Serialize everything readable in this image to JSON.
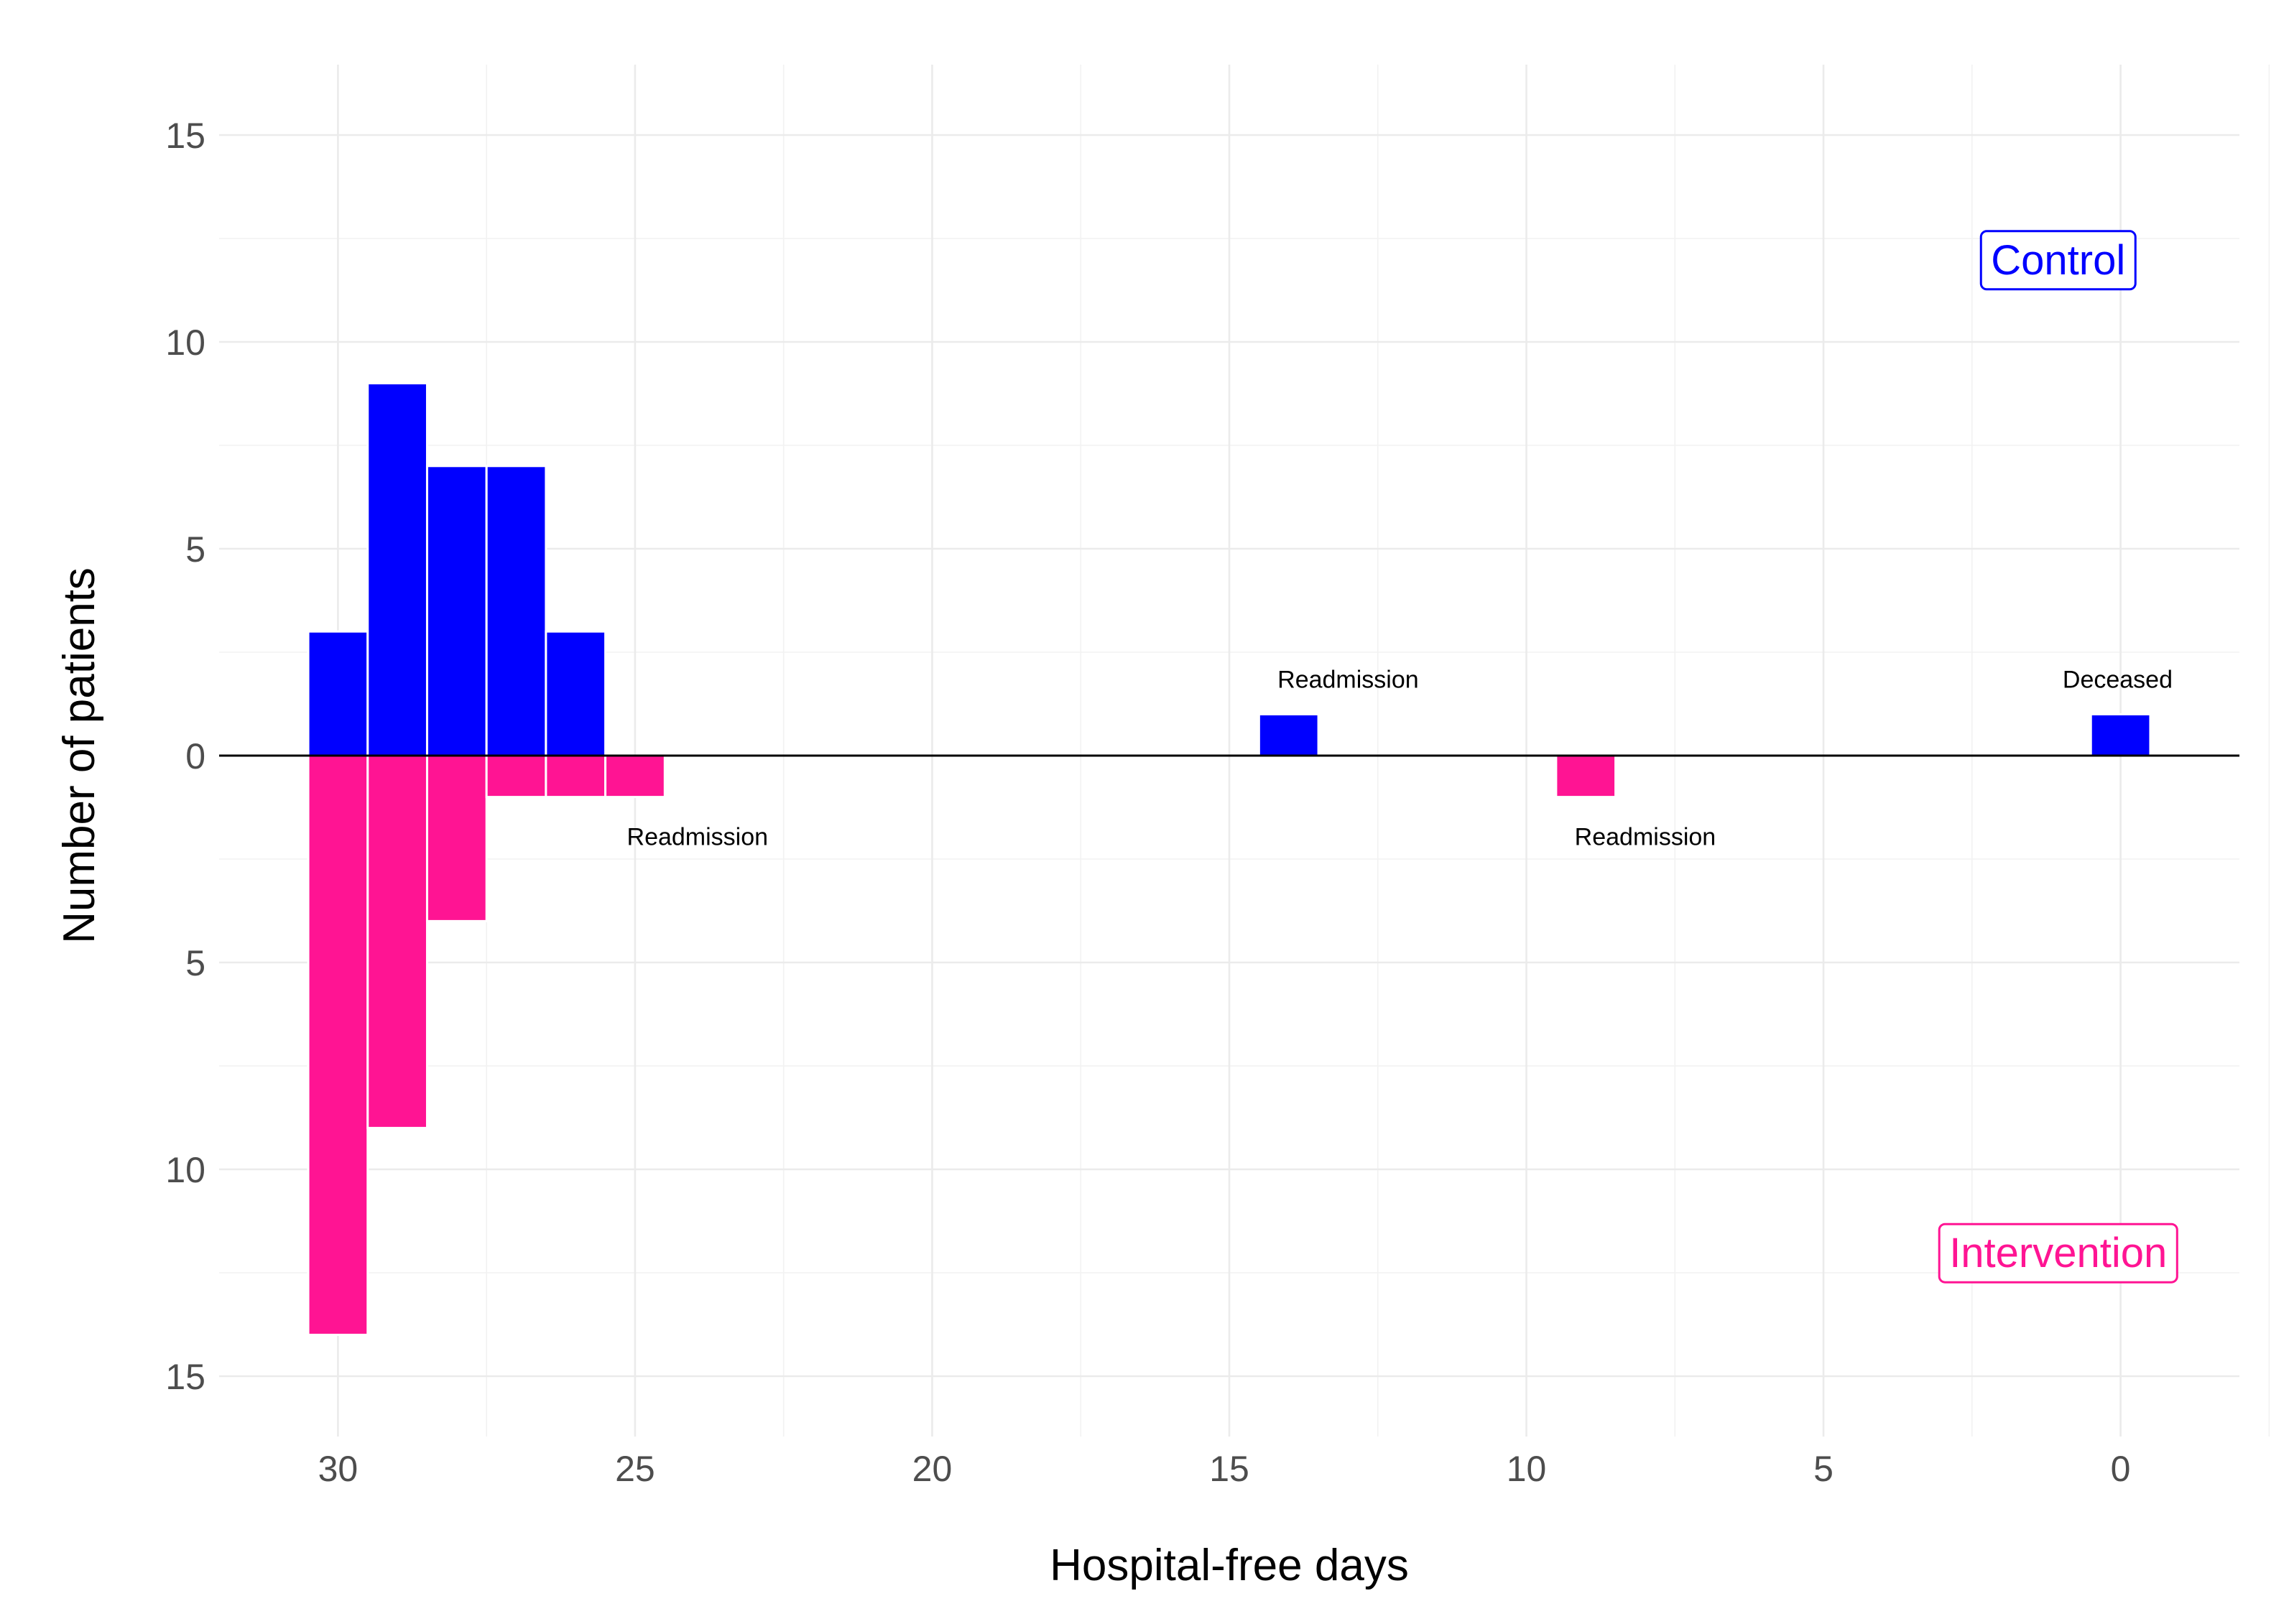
{
  "chart_data": {
    "type": "bar",
    "title": "",
    "xlabel": "Hospital-free days",
    "ylabel": "Number of patients",
    "x_reversed": true,
    "xlim": [
      -2,
      32
    ],
    "ylim": [
      -15,
      15
    ],
    "x_ticks": [
      30,
      25,
      20,
      15,
      10,
      5,
      0
    ],
    "y_ticks": [
      15,
      10,
      5,
      0,
      -5,
      -10,
      -15
    ],
    "y_tick_labels": [
      "15",
      "10",
      "5",
      "0",
      "5",
      "10",
      "15"
    ],
    "grid": true,
    "bar_width": 1,
    "series": [
      {
        "name": "Control",
        "color": "#0000ff",
        "direction": "up",
        "points": [
          {
            "x": 30,
            "value": 3
          },
          {
            "x": 29,
            "value": 9
          },
          {
            "x": 28,
            "value": 7
          },
          {
            "x": 27,
            "value": 7
          },
          {
            "x": 26,
            "value": 3
          },
          {
            "x": 14,
            "value": 1
          },
          {
            "x": 0,
            "value": 1
          }
        ]
      },
      {
        "name": "Intervention",
        "color": "#ff1493",
        "direction": "down",
        "points": [
          {
            "x": 30,
            "value": 14
          },
          {
            "x": 29,
            "value": 9
          },
          {
            "x": 28,
            "value": 4
          },
          {
            "x": 27,
            "value": 1
          },
          {
            "x": 26,
            "value": 1
          },
          {
            "x": 25,
            "value": 1
          },
          {
            "x": 9,
            "value": 1
          }
        ]
      }
    ],
    "annotations": [
      {
        "text": "Readmission",
        "x": 13.0,
        "y": 1.85
      },
      {
        "text": "Deceased",
        "x": 0.05,
        "y": 1.85
      },
      {
        "text": "Readmission",
        "x": 23.95,
        "y": -1.95
      },
      {
        "text": "Readmission",
        "x": 8.0,
        "y": -1.95
      }
    ],
    "legend_boxes": [
      {
        "text": "Control",
        "color": "#0000ff",
        "x": 1.05,
        "y": 12.0
      },
      {
        "text": "Intervention",
        "color": "#ff1493",
        "x": 1.05,
        "y": -12.0
      }
    ]
  }
}
